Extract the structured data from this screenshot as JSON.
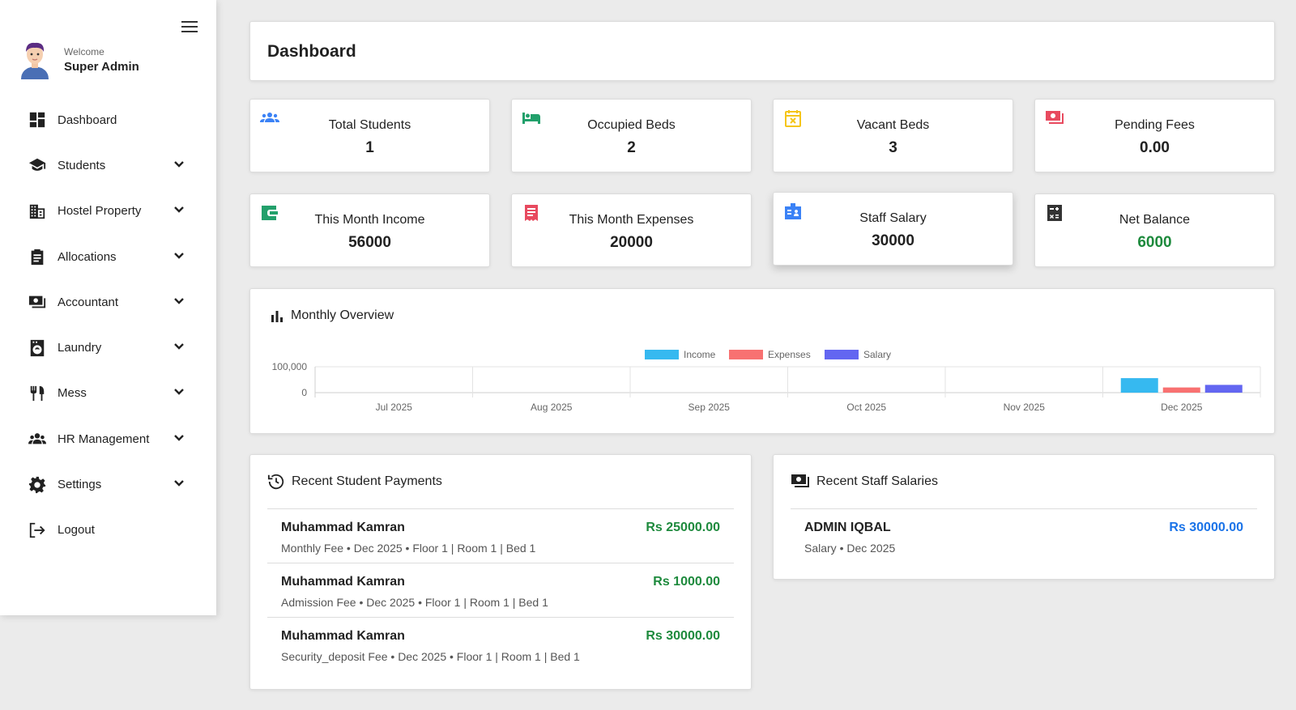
{
  "sidebar": {
    "welcome": "Welcome",
    "username": "Super Admin",
    "items": [
      {
        "label": "Dashboard",
        "icon": "dashboard-icon",
        "expandable": false
      },
      {
        "label": "Students",
        "icon": "graduation-cap-icon",
        "expandable": true
      },
      {
        "label": "Hostel Property",
        "icon": "building-icon",
        "expandable": true
      },
      {
        "label": "Allocations",
        "icon": "clipboard-icon",
        "expandable": true
      },
      {
        "label": "Accountant",
        "icon": "cash-icon",
        "expandable": true
      },
      {
        "label": "Laundry",
        "icon": "washing-machine-icon",
        "expandable": true
      },
      {
        "label": "Mess",
        "icon": "utensils-icon",
        "expandable": true
      },
      {
        "label": "HR Management",
        "icon": "people-group-icon",
        "expandable": true
      },
      {
        "label": "Settings",
        "icon": "gear-icon",
        "expandable": true
      },
      {
        "label": "Logout",
        "icon": "logout-icon",
        "expandable": false
      }
    ]
  },
  "header": {
    "title": "Dashboard"
  },
  "stats": [
    {
      "label": "Total Students",
      "value": "1",
      "icon": "users-icon",
      "icon_color": "#3b82f6"
    },
    {
      "label": "Occupied Beds",
      "value": "2",
      "icon": "bed-icon",
      "icon_color": "#22a06b"
    },
    {
      "label": "Vacant Beds",
      "value": "3",
      "icon": "calendar-x-icon",
      "icon_color": "#f5c518"
    },
    {
      "label": "Pending Fees",
      "value": "0.00",
      "icon": "money-icon",
      "icon_color": "#e84a5f"
    },
    {
      "label": "This Month Income",
      "value": "56000",
      "icon": "wallet-icon",
      "icon_color": "#22a06b"
    },
    {
      "label": "This Month Expenses",
      "value": "20000",
      "icon": "receipt-icon",
      "icon_color": "#e84a5f"
    },
    {
      "label": "Staff Salary",
      "value": "30000",
      "icon": "id-badge-icon",
      "icon_color": "#3b82f6"
    },
    {
      "label": "Net Balance",
      "value": "6000",
      "icon": "calculator-icon",
      "icon_color": "#333333",
      "value_color": "#1e8a3d"
    }
  ],
  "overview": {
    "title": "Monthly Overview"
  },
  "chart_data": {
    "type": "bar",
    "categories": [
      "Jul 2025",
      "Aug 2025",
      "Sep 2025",
      "Oct 2025",
      "Nov 2025",
      "Dec 2025"
    ],
    "series": [
      {
        "name": "Income",
        "color": "#36b9f0",
        "values": [
          0,
          0,
          0,
          0,
          0,
          56000
        ]
      },
      {
        "name": "Expenses",
        "color": "#f87171",
        "values": [
          0,
          0,
          0,
          0,
          0,
          20000
        ]
      },
      {
        "name": "Salary",
        "color": "#6366f1",
        "values": [
          0,
          0,
          0,
          0,
          0,
          30000
        ]
      }
    ],
    "ylim": [
      0,
      100000
    ],
    "yticks": [
      "100,000",
      "0"
    ],
    "legend": "top-center",
    "grid": true
  },
  "payments": {
    "title": "Recent Student Payments",
    "rows": [
      {
        "name": "Muhammad Kamran",
        "desc": "Monthly Fee • Dec 2025 • Floor 1 | Room 1 | Bed 1",
        "amount": "Rs 25000.00"
      },
      {
        "name": "Muhammad Kamran",
        "desc": "Admission Fee • Dec 2025 • Floor 1 | Room 1 | Bed 1",
        "amount": "Rs 1000.00"
      },
      {
        "name": "Muhammad Kamran",
        "desc": "Security_deposit Fee • Dec 2025 • Floor 1 | Room 1 | Bed 1",
        "amount": "Rs 30000.00"
      }
    ]
  },
  "salaries": {
    "title": "Recent Staff Salaries",
    "rows": [
      {
        "name": "ADMIN IQBAL",
        "desc": "Salary • Dec 2025",
        "amount": "Rs 30000.00"
      }
    ]
  }
}
